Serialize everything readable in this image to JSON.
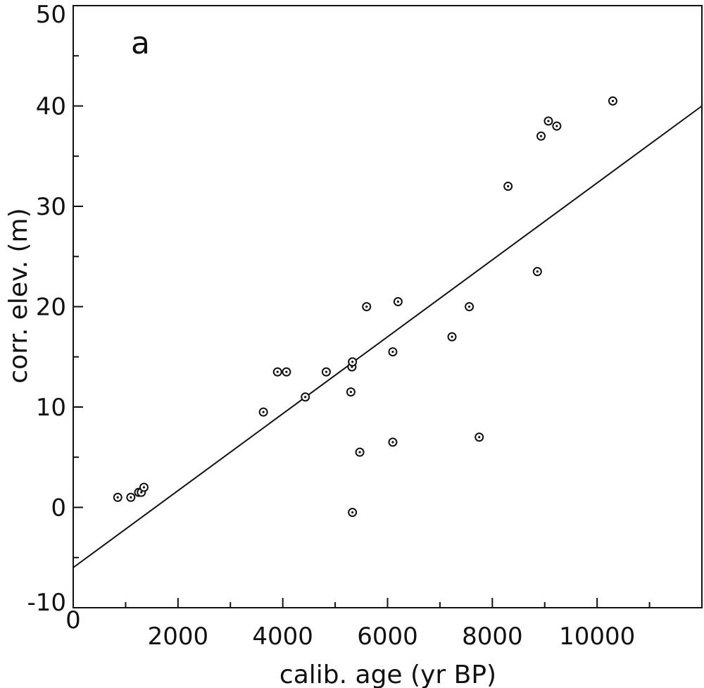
{
  "chart_data": {
    "type": "scatter",
    "panel_label": "a",
    "title": "",
    "xlabel": "calib. age (yr BP)",
    "ylabel": "corr. elev. (m)",
    "xlim": [
      0,
      12000
    ],
    "ylim": [
      -10,
      50
    ],
    "x_ticks": [
      2000,
      4000,
      6000,
      8000,
      10000
    ],
    "x_tick_labels": [
      "2000",
      "4000",
      "6000",
      "8000",
      "10000"
    ],
    "x_origin_label": "0",
    "y_ticks": [
      -10,
      0,
      10,
      20,
      30,
      40,
      50
    ],
    "y_tick_labels": [
      "-10",
      "0",
      "10",
      "20",
      "30",
      "40",
      "50"
    ],
    "grid": false,
    "series": [
      {
        "marker": "circle-dot",
        "points": [
          {
            "x": 850,
            "y": 1.0
          },
          {
            "x": 1100,
            "y": 1.0
          },
          {
            "x": 1250,
            "y": 1.5
          },
          {
            "x": 1300,
            "y": 1.5
          },
          {
            "x": 1350,
            "y": 2.0
          },
          {
            "x": 3630,
            "y": 9.5
          },
          {
            "x": 3900,
            "y": 13.5
          },
          {
            "x": 4070,
            "y": 13.5
          },
          {
            "x": 4430,
            "y": 11.0
          },
          {
            "x": 4830,
            "y": 13.5
          },
          {
            "x": 5300,
            "y": 11.5
          },
          {
            "x": 5320,
            "y": 14.0
          },
          {
            "x": 5330,
            "y": 14.5
          },
          {
            "x": 5330,
            "y": -0.5
          },
          {
            "x": 5470,
            "y": 5.5
          },
          {
            "x": 5600,
            "y": 20.0
          },
          {
            "x": 6100,
            "y": 6.5
          },
          {
            "x": 6100,
            "y": 15.5
          },
          {
            "x": 6200,
            "y": 20.5
          },
          {
            "x": 7230,
            "y": 17.0
          },
          {
            "x": 7560,
            "y": 20.0
          },
          {
            "x": 7750,
            "y": 7.0
          },
          {
            "x": 8300,
            "y": 32.0
          },
          {
            "x": 8860,
            "y": 23.5
          },
          {
            "x": 8930,
            "y": 37.0
          },
          {
            "x": 9070,
            "y": 38.5
          },
          {
            "x": 9230,
            "y": 38.0
          },
          {
            "x": 10300,
            "y": 40.5
          }
        ]
      }
    ],
    "regression_line": {
      "x": [
        0,
        12000
      ],
      "y": [
        -6.0,
        40.0
      ]
    }
  },
  "colors": {
    "axis": "#111111",
    "marker": "#111111",
    "line": "#111111",
    "background": "#ffffff"
  }
}
